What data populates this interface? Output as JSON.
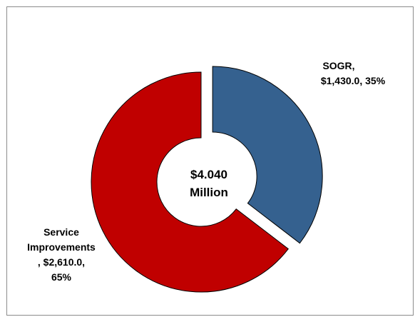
{
  "chart_data": {
    "type": "pie",
    "donut": true,
    "center_label": [
      "$4.040",
      "Million"
    ],
    "slices": [
      {
        "name": "SOGR",
        "value": 1430.0,
        "percent": 35,
        "color": "#35618f",
        "exploded": true,
        "label_lines": [
          "SOGR,",
          "$1,430.0, 35%"
        ]
      },
      {
        "name": "Service Improvements",
        "value": 2610.0,
        "percent": 65,
        "color": "#c00000",
        "exploded": false,
        "label_lines": [
          "Service",
          "Improvements",
          ", $2,610.0,",
          "65%"
        ]
      }
    ]
  }
}
